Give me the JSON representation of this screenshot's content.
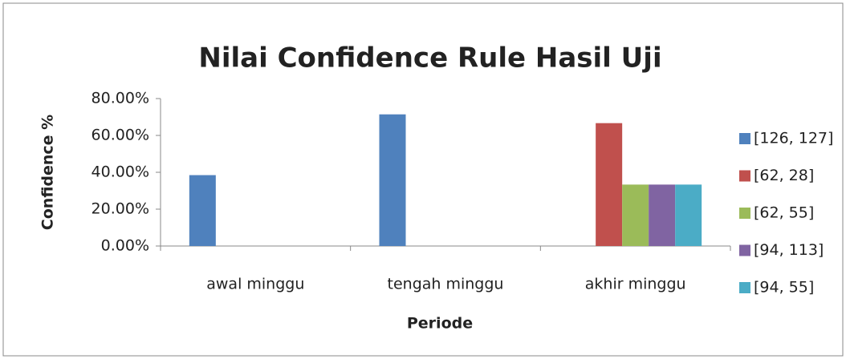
{
  "chart_data": {
    "type": "bar",
    "title": "Nilai Confidence Rule Hasil Uji",
    "x_label": "Periode",
    "y_label": "Confidence %",
    "categories": [
      "awal minggu",
      "tengah minggu",
      "akhir minggu"
    ],
    "series": [
      {
        "name": "[126, 127]",
        "color": "#4f81bd",
        "values": [
          38.46,
          71.43,
          0
        ]
      },
      {
        "name": "[62, 28]",
        "color": "#c0504d",
        "values": [
          0,
          0,
          66.67
        ]
      },
      {
        "name": "[62, 55]",
        "color": "#9bbb59",
        "values": [
          0,
          0,
          33.33
        ]
      },
      {
        "name": "[94, 113]",
        "color": "#8064a2",
        "values": [
          0,
          0,
          33.33
        ]
      },
      {
        "name": "[94, 55]",
        "color": "#4bacc6",
        "values": [
          0,
          0,
          33.33
        ]
      }
    ],
    "ylim": [
      0,
      80
    ],
    "yticks": [
      {
        "value": 0,
        "label": "0.00%"
      },
      {
        "value": 20,
        "label": "20.00%"
      },
      {
        "value": 40,
        "label": "40.00%"
      },
      {
        "value": 60,
        "label": "60.00%"
      },
      {
        "value": 80,
        "label": "80.00%"
      }
    ],
    "grid": false,
    "legend": "right"
  }
}
